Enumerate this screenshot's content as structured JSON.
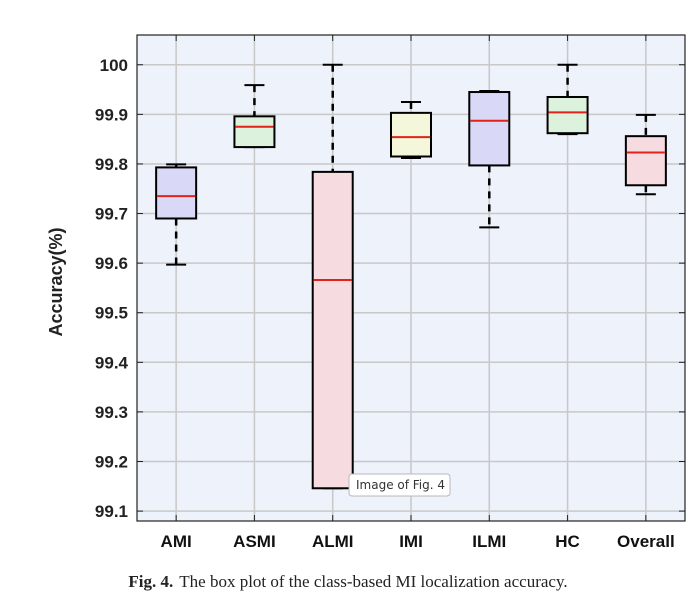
{
  "chart_data": {
    "type": "box",
    "title": "",
    "xlabel": "",
    "ylabel": "Accuracy(%)",
    "ylim": [
      99.08,
      100.06
    ],
    "yticks": [
      "99.1",
      "99.2",
      "99.3",
      "99.4",
      "99.5",
      "99.6",
      "99.7",
      "99.8",
      "99.9",
      "100"
    ],
    "grid": true,
    "categories": [
      "AMI",
      "ASMI",
      "ALMI",
      "IMI",
      "ILMI",
      "HC",
      "Overall"
    ],
    "boxes": [
      {
        "name": "AMI",
        "min": 99.597,
        "q1": 99.69,
        "median": 99.735,
        "q3": 99.793,
        "max": 99.799,
        "fill": "#d9d9f7"
      },
      {
        "name": "ASMI",
        "min": 99.834,
        "q1": 99.834,
        "median": 99.875,
        "q3": 99.896,
        "max": 99.959,
        "fill": "#dcf2dc"
      },
      {
        "name": "ALMI",
        "min": 99.146,
        "q1": 99.146,
        "median": 99.566,
        "q3": 99.784,
        "max": 100.0,
        "fill": "#f6dce0"
      },
      {
        "name": "IMI",
        "min": 99.812,
        "q1": 99.815,
        "median": 99.854,
        "q3": 99.903,
        "max": 99.925,
        "fill": "#f4f7d9"
      },
      {
        "name": "ILMI",
        "min": 99.672,
        "q1": 99.797,
        "median": 99.887,
        "q3": 99.945,
        "max": 99.947,
        "fill": "#d9d9f7"
      },
      {
        "name": "HC",
        "min": 99.86,
        "q1": 99.862,
        "median": 99.904,
        "q3": 99.935,
        "max": 100.0,
        "fill": "#dcf2dc"
      },
      {
        "name": "Overall",
        "min": 99.739,
        "q1": 99.757,
        "median": 99.823,
        "q3": 99.856,
        "max": 99.899,
        "fill": "#f6dce0"
      }
    ],
    "median_color": "#e2231a",
    "box_edge_color": "#000000",
    "grid_color": "#c8c8c8",
    "plot_background": "#eef2fb"
  },
  "tooltip": {
    "text": "Image of Fig. 4"
  },
  "caption": {
    "label": "Fig. 4.",
    "text": "The box plot of the class-based MI localization accuracy."
  }
}
